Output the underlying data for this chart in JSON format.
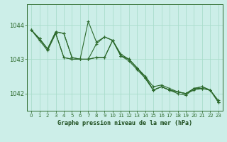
{
  "bg_color": "#cceee8",
  "grid_color": "#aaddcc",
  "line_color": "#2d6a2d",
  "marker_color": "#2d6a2d",
  "title": "Graphe pression niveau de la mer (hPa)",
  "title_color": "#1a4a1a",
  "xlim": [
    -0.5,
    23.5
  ],
  "ylim": [
    1041.5,
    1044.6
  ],
  "yticks": [
    1042,
    1043,
    1044
  ],
  "xticks": [
    0,
    1,
    2,
    3,
    4,
    5,
    6,
    7,
    8,
    9,
    10,
    11,
    12,
    13,
    14,
    15,
    16,
    17,
    18,
    19,
    20,
    21,
    22,
    23
  ],
  "series": [
    [
      1043.85,
      1043.6,
      1043.3,
      1043.75,
      1043.05,
      1043.0,
      1043.0,
      1043.0,
      1043.45,
      1043.65,
      1043.55,
      1043.15,
      1043.0,
      1042.75,
      1042.5,
      1042.1,
      1042.2,
      1042.1,
      1042.05,
      1042.0,
      1042.1,
      1042.15,
      1042.1,
      1041.75
    ],
    [
      1043.85,
      1043.55,
      1043.25,
      1043.75,
      1043.05,
      1043.0,
      1043.0,
      1044.1,
      1043.5,
      1043.65,
      1043.55,
      1043.1,
      1042.95,
      1042.7,
      1042.45,
      1042.1,
      1042.2,
      1042.1,
      1042.05,
      1042.0,
      1042.15,
      1042.2,
      1042.1,
      1041.75
    ],
    [
      1043.85,
      1043.6,
      1043.3,
      1043.8,
      1043.75,
      1043.05,
      1043.0,
      1043.0,
      1043.05,
      1043.05,
      1043.55,
      1043.1,
      1043.0,
      1042.75,
      1042.5,
      1042.2,
      1042.25,
      1042.15,
      1042.05,
      1042.0,
      1042.15,
      1042.2,
      1042.1,
      1041.8
    ],
    [
      1043.85,
      1043.6,
      1043.3,
      1043.8,
      1043.75,
      1043.05,
      1043.0,
      1043.0,
      1043.05,
      1043.05,
      1043.55,
      1043.1,
      1043.0,
      1042.75,
      1042.45,
      1042.1,
      1042.2,
      1042.1,
      1042.0,
      1041.95,
      1042.15,
      1042.15,
      1042.1,
      1041.75
    ]
  ]
}
